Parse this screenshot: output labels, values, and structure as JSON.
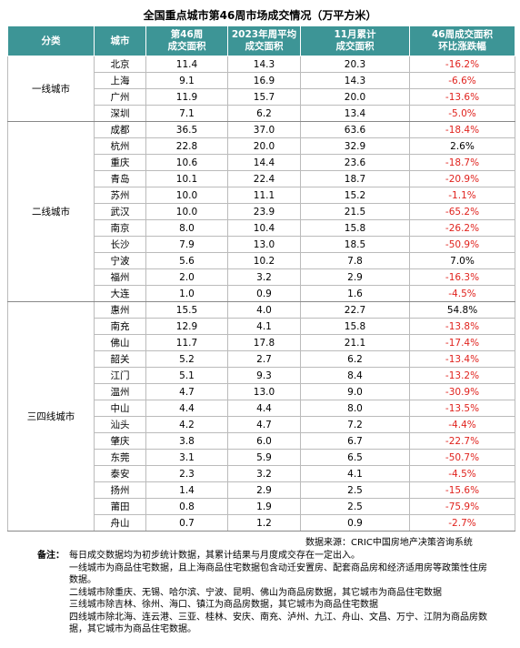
{
  "title": "全国重点城市第46周市场成交情况（万平方米）",
  "table": {
    "header": [
      [
        "分类"
      ],
      [
        "城市"
      ],
      [
        "第46周",
        "成交面积"
      ],
      [
        "2023年周平均",
        "成交面积"
      ],
      [
        "11月累计",
        "成交面积"
      ],
      [
        "46周成交面积",
        "环比涨跌幅"
      ]
    ],
    "groups": [
      {
        "name": "一线城市",
        "rows": [
          [
            "北京",
            "11.4",
            "14.3",
            "20.3",
            "-16.2%"
          ],
          [
            "上海",
            "9.1",
            "16.9",
            "14.3",
            "-6.6%"
          ],
          [
            "广州",
            "11.9",
            "15.7",
            "20.0",
            "-13.6%"
          ],
          [
            "深圳",
            "7.1",
            "6.2",
            "13.4",
            "-5.0%"
          ]
        ]
      },
      {
        "name": "二线城市",
        "rows": [
          [
            "成都",
            "36.5",
            "37.0",
            "63.6",
            "-18.4%"
          ],
          [
            "杭州",
            "22.8",
            "20.0",
            "32.9",
            "2.6%"
          ],
          [
            "重庆",
            "10.6",
            "14.4",
            "23.6",
            "-18.7%"
          ],
          [
            "青岛",
            "10.1",
            "22.4",
            "18.7",
            "-20.9%"
          ],
          [
            "苏州",
            "10.0",
            "11.1",
            "15.2",
            "-1.1%"
          ],
          [
            "武汉",
            "10.0",
            "23.9",
            "21.5",
            "-65.2%"
          ],
          [
            "南京",
            "8.0",
            "10.4",
            "15.8",
            "-26.2%"
          ],
          [
            "长沙",
            "7.9",
            "13.0",
            "18.5",
            "-50.9%"
          ],
          [
            "宁波",
            "5.6",
            "10.2",
            "7.8",
            "7.0%"
          ],
          [
            "福州",
            "2.0",
            "3.2",
            "2.9",
            "-16.3%"
          ],
          [
            "大连",
            "1.0",
            "0.9",
            "1.6",
            "-4.5%"
          ]
        ]
      },
      {
        "name": "三四线城市",
        "rows": [
          [
            "惠州",
            "15.5",
            "4.0",
            "22.7",
            "54.8%"
          ],
          [
            "南充",
            "12.9",
            "4.1",
            "15.8",
            "-13.8%"
          ],
          [
            "佛山",
            "11.7",
            "17.8",
            "21.1",
            "-17.4%"
          ],
          [
            "韶关",
            "5.2",
            "2.7",
            "6.2",
            "-13.4%"
          ],
          [
            "江门",
            "5.1",
            "9.3",
            "8.4",
            "-13.2%"
          ],
          [
            "温州",
            "4.7",
            "13.0",
            "9.0",
            "-30.9%"
          ],
          [
            "中山",
            "4.4",
            "4.4",
            "8.0",
            "-13.5%"
          ],
          [
            "汕头",
            "4.2",
            "4.7",
            "7.2",
            "-4.4%"
          ],
          [
            "肇庆",
            "3.8",
            "6.0",
            "6.7",
            "-22.7%"
          ],
          [
            "东莞",
            "3.1",
            "5.9",
            "6.5",
            "-50.7%"
          ],
          [
            "泰安",
            "2.3",
            "3.2",
            "4.1",
            "-4.5%"
          ],
          [
            "扬州",
            "1.4",
            "2.9",
            "2.5",
            "-15.6%"
          ],
          [
            "莆田",
            "0.8",
            "1.9",
            "2.5",
            "-75.9%"
          ],
          [
            "舟山",
            "0.7",
            "1.2",
            "0.9",
            "-2.7%"
          ]
        ]
      }
    ]
  },
  "source": "数据来源：CRIC中国房地产决策咨询系统",
  "notes": {
    "label": "备注：",
    "lines": [
      "每日成交数据均为初步统计数据，其累计结果与月度成交存在一定出入。",
      "一线城市为商品住宅数据，且上海商品住宅数据包含动迁安置房、配套商品房和经济适用房等政策性住房数据。",
      "二线城市除重庆、无锡、哈尔滨、宁波、昆明、佛山为商品房数据，其它城市为商品住宅数据",
      "三线城市除吉林、徐州、海口、镇江为商品房数据，其它城市为商品住宅数据",
      "四线城市除北海、连云港、三亚、桂林、安庆、南充、泸州、九江、舟山、文昌、万宁、江阴为商品房数据，其它城市为商品住宅数据。"
    ]
  }
}
